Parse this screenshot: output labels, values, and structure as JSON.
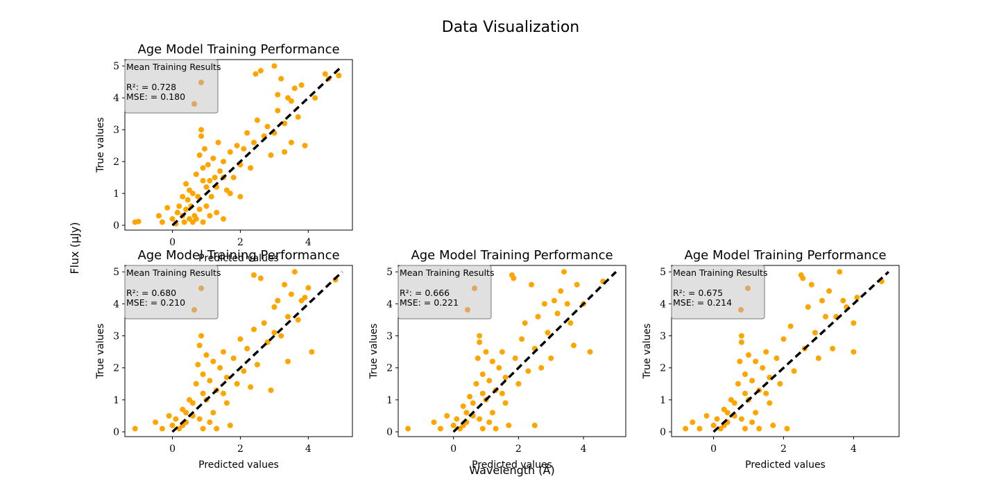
{
  "figure": {
    "suptitle": "Data Visualization",
    "supxlabel": "Wavelength (Å)",
    "supylabel": "Flux (μJy)"
  },
  "colors": {
    "points": "#ffa500",
    "legend_marker": "#dfa85e",
    "diagonal": "#000000",
    "legend_bg": "#e0e0e0"
  },
  "chart_data": [
    {
      "type": "scatter",
      "title": "Age Model Training Performance",
      "xlabel": "Predicted values",
      "ylabel": "True values",
      "xlim": [
        -1.4,
        5.3
      ],
      "ylim": [
        -0.15,
        5.2
      ],
      "xticks": [
        0,
        2,
        4
      ],
      "yticks": [
        0,
        1,
        2,
        3,
        4,
        5
      ],
      "legend": {
        "title": "Mean Training Results",
        "placement": "top-left",
        "entries": [
          "R²: = 0.728",
          "MSE: = 0.180"
        ]
      },
      "diagonal": [
        [
          0,
          0
        ],
        [
          5,
          5
        ]
      ],
      "points": [
        [
          -1.1,
          0.1
        ],
        [
          -1.0,
          0.12
        ],
        [
          -0.4,
          0.3
        ],
        [
          -0.3,
          0.1
        ],
        [
          -0.15,
          0.55
        ],
        [
          0.0,
          0.2
        ],
        [
          0.1,
          0.05
        ],
        [
          0.15,
          0.4
        ],
        [
          0.2,
          0.6
        ],
        [
          0.3,
          0.3
        ],
        [
          0.35,
          0.1
        ],
        [
          0.4,
          1.3
        ],
        [
          0.45,
          0.8
        ],
        [
          0.5,
          0.2
        ],
        [
          0.55,
          0.6
        ],
        [
          0.6,
          1.0
        ],
        [
          0.65,
          0.3
        ],
        [
          0.7,
          1.6
        ],
        [
          0.75,
          0.9
        ],
        [
          0.8,
          2.2
        ],
        [
          0.8,
          0.5
        ],
        [
          0.85,
          3.0
        ],
        [
          0.85,
          2.8
        ],
        [
          0.9,
          1.8
        ],
        [
          0.9,
          0.1
        ],
        [
          0.95,
          2.4
        ],
        [
          1.0,
          1.2
        ],
        [
          1.0,
          0.6
        ],
        [
          1.05,
          1.9
        ],
        [
          1.1,
          1.4
        ],
        [
          1.15,
          0.9
        ],
        [
          1.2,
          2.1
        ],
        [
          1.25,
          1.5
        ],
        [
          1.3,
          0.4
        ],
        [
          1.35,
          2.6
        ],
        [
          1.4,
          1.7
        ],
        [
          1.5,
          0.2
        ],
        [
          1.5,
          2.0
        ],
        [
          1.6,
          1.1
        ],
        [
          1.7,
          2.3
        ],
        [
          1.8,
          1.5
        ],
        [
          1.9,
          2.5
        ],
        [
          2.0,
          1.9
        ],
        [
          2.0,
          0.9
        ],
        [
          2.1,
          2.4
        ],
        [
          2.2,
          2.9
        ],
        [
          2.3,
          1.8
        ],
        [
          2.4,
          2.6
        ],
        [
          2.45,
          4.75
        ],
        [
          2.5,
          3.3
        ],
        [
          2.6,
          4.85
        ],
        [
          2.7,
          2.8
        ],
        [
          2.8,
          3.1
        ],
        [
          2.9,
          2.2
        ],
        [
          3.0,
          5.0
        ],
        [
          3.0,
          2.9
        ],
        [
          3.1,
          4.1
        ],
        [
          3.1,
          3.6
        ],
        [
          3.2,
          4.6
        ],
        [
          3.3,
          3.2
        ],
        [
          3.3,
          2.3
        ],
        [
          3.4,
          4.0
        ],
        [
          3.5,
          3.9
        ],
        [
          3.5,
          2.6
        ],
        [
          3.6,
          4.3
        ],
        [
          3.7,
          3.4
        ],
        [
          3.8,
          4.4
        ],
        [
          3.9,
          2.5
        ],
        [
          4.2,
          4.0
        ],
        [
          4.5,
          4.75
        ],
        [
          4.6,
          4.6
        ],
        [
          4.9,
          4.7
        ],
        [
          0.3,
          0.9
        ],
        [
          0.5,
          1.1
        ],
        [
          0.7,
          0.2
        ],
        [
          0.9,
          1.4
        ],
        [
          1.1,
          0.3
        ],
        [
          1.3,
          1.2
        ],
        [
          1.5,
          1.5
        ],
        [
          1.7,
          1.0
        ],
        [
          0.6,
          0.1
        ],
        [
          0.4,
          0.5
        ]
      ]
    },
    {
      "type": "scatter",
      "title": "Age Model Training Performance",
      "xlabel": "Predicted values",
      "ylabel": "True values",
      "xlim": [
        -1.4,
        5.3
      ],
      "ylim": [
        -0.15,
        5.2
      ],
      "xticks": [
        0,
        2,
        4
      ],
      "yticks": [
        0,
        1,
        2,
        3,
        4,
        5
      ],
      "legend": {
        "title": "Mean Training Results",
        "placement": "top-left",
        "entries": [
          "R²: = 0.680",
          "MSE: = 0.210"
        ]
      },
      "diagonal": [
        [
          0,
          0
        ],
        [
          5,
          5
        ]
      ],
      "points": [
        [
          -1.1,
          0.1
        ],
        [
          -0.5,
          0.3
        ],
        [
          -0.3,
          0.1
        ],
        [
          -0.1,
          0.5
        ],
        [
          0.0,
          0.2
        ],
        [
          0.1,
          0.4
        ],
        [
          0.2,
          0.1
        ],
        [
          0.3,
          0.7
        ],
        [
          0.4,
          0.3
        ],
        [
          0.5,
          1.0
        ],
        [
          0.6,
          0.5
        ],
        [
          0.7,
          1.5
        ],
        [
          0.75,
          2.1
        ],
        [
          0.8,
          2.7
        ],
        [
          0.85,
          3.0
        ],
        [
          0.9,
          1.8
        ],
        [
          0.9,
          0.1
        ],
        [
          1.0,
          2.4
        ],
        [
          1.0,
          1.0
        ],
        [
          1.1,
          1.6
        ],
        [
          1.2,
          0.6
        ],
        [
          1.2,
          2.2
        ],
        [
          1.3,
          1.3
        ],
        [
          1.4,
          2.0
        ],
        [
          1.5,
          2.5
        ],
        [
          1.6,
          1.7
        ],
        [
          1.7,
          0.2
        ],
        [
          1.8,
          2.3
        ],
        [
          1.9,
          1.5
        ],
        [
          2.0,
          2.9
        ],
        [
          2.1,
          1.9
        ],
        [
          2.2,
          2.6
        ],
        [
          2.3,
          1.4
        ],
        [
          2.4,
          4.9
        ],
        [
          2.4,
          3.2
        ],
        [
          2.5,
          2.1
        ],
        [
          2.6,
          4.8
        ],
        [
          2.7,
          3.4
        ],
        [
          2.8,
          2.8
        ],
        [
          2.9,
          1.3
        ],
        [
          3.0,
          3.9
        ],
        [
          3.0,
          3.1
        ],
        [
          3.1,
          4.1
        ],
        [
          3.2,
          3.0
        ],
        [
          3.3,
          4.6
        ],
        [
          3.4,
          2.2
        ],
        [
          3.4,
          3.6
        ],
        [
          3.5,
          4.3
        ],
        [
          3.6,
          5.0
        ],
        [
          3.7,
          3.5
        ],
        [
          3.8,
          4.1
        ],
        [
          3.9,
          4.2
        ],
        [
          4.0,
          4.5
        ],
        [
          4.1,
          2.5
        ],
        [
          4.8,
          4.75
        ],
        [
          0.3,
          0.2
        ],
        [
          0.6,
          0.9
        ],
        [
          0.8,
          0.4
        ],
        [
          1.1,
          0.3
        ],
        [
          1.3,
          0.1
        ],
        [
          1.5,
          1.2
        ],
        [
          0.4,
          0.6
        ],
        [
          0.9,
          1.2
        ],
        [
          1.6,
          0.9
        ]
      ]
    },
    {
      "type": "scatter",
      "title": "Age Model Training Performance",
      "xlabel": "Predicted values",
      "ylabel": "True values",
      "xlim": [
        -1.7,
        5.3
      ],
      "ylim": [
        -0.15,
        5.2
      ],
      "xticks": [
        0,
        2,
        4
      ],
      "yticks": [
        0,
        1,
        2,
        3,
        4,
        5
      ],
      "legend": {
        "title": "Mean Training Results",
        "placement": "top-left",
        "entries": [
          "R²: = 0.666",
          "MSE: = 0.221"
        ]
      },
      "diagonal": [
        [
          0,
          0
        ],
        [
          5,
          5
        ]
      ],
      "points": [
        [
          -1.4,
          0.1
        ],
        [
          -0.6,
          0.3
        ],
        [
          -0.4,
          0.1
        ],
        [
          -0.2,
          0.5
        ],
        [
          0.0,
          0.2
        ],
        [
          0.1,
          0.4
        ],
        [
          0.2,
          0.1
        ],
        [
          0.3,
          0.8
        ],
        [
          0.4,
          0.3
        ],
        [
          0.5,
          1.1
        ],
        [
          0.6,
          0.5
        ],
        [
          0.7,
          1.5
        ],
        [
          0.75,
          2.3
        ],
        [
          0.8,
          2.8
        ],
        [
          0.8,
          3.0
        ],
        [
          0.9,
          1.8
        ],
        [
          0.9,
          0.1
        ],
        [
          1.0,
          2.5
        ],
        [
          1.0,
          1.0
        ],
        [
          1.1,
          1.6
        ],
        [
          1.2,
          0.6
        ],
        [
          1.2,
          2.2
        ],
        [
          1.3,
          1.3
        ],
        [
          1.4,
          2.0
        ],
        [
          1.5,
          2.5
        ],
        [
          1.6,
          1.7
        ],
        [
          1.7,
          0.2
        ],
        [
          1.8,
          4.9
        ],
        [
          1.85,
          4.8
        ],
        [
          1.9,
          2.3
        ],
        [
          2.0,
          1.5
        ],
        [
          2.1,
          2.9
        ],
        [
          2.2,
          3.4
        ],
        [
          2.3,
          1.9
        ],
        [
          2.4,
          4.6
        ],
        [
          2.5,
          2.6
        ],
        [
          2.5,
          0.2
        ],
        [
          2.6,
          3.6
        ],
        [
          2.7,
          2.0
        ],
        [
          2.8,
          4.0
        ],
        [
          2.9,
          3.1
        ],
        [
          3.0,
          2.3
        ],
        [
          3.1,
          4.1
        ],
        [
          3.2,
          3.7
        ],
        [
          3.3,
          4.4
        ],
        [
          3.4,
          5.0
        ],
        [
          3.5,
          4.0
        ],
        [
          3.6,
          3.4
        ],
        [
          3.7,
          2.7
        ],
        [
          3.8,
          4.6
        ],
        [
          4.0,
          4.0
        ],
        [
          4.2,
          2.5
        ],
        [
          4.6,
          4.7
        ],
        [
          0.3,
          0.2
        ],
        [
          0.6,
          0.9
        ],
        [
          0.8,
          0.4
        ],
        [
          1.1,
          0.3
        ],
        [
          1.3,
          0.1
        ],
        [
          1.5,
          1.2
        ],
        [
          0.4,
          0.6
        ],
        [
          0.9,
          1.2
        ],
        [
          1.6,
          0.9
        ]
      ]
    },
    {
      "type": "scatter",
      "title": "Age Model Training Performance",
      "xlabel": "Predicted values",
      "ylabel": "True values",
      "xlim": [
        -1.2,
        5.3
      ],
      "ylim": [
        -0.15,
        5.2
      ],
      "xticks": [
        0,
        2,
        4
      ],
      "yticks": [
        0,
        1,
        2,
        3,
        4,
        5
      ],
      "legend": {
        "title": "Mean Training Results",
        "placement": "top-left",
        "entries": [
          "R²: = 0.675",
          "MSE: = 0.214"
        ]
      },
      "diagonal": [
        [
          0,
          0
        ],
        [
          5,
          5
        ]
      ],
      "points": [
        [
          -0.8,
          0.1
        ],
        [
          -0.6,
          0.3
        ],
        [
          -0.4,
          0.1
        ],
        [
          -0.2,
          0.5
        ],
        [
          0.0,
          0.2
        ],
        [
          0.1,
          0.4
        ],
        [
          0.2,
          0.1
        ],
        [
          0.3,
          0.7
        ],
        [
          0.4,
          0.3
        ],
        [
          0.5,
          1.0
        ],
        [
          0.6,
          0.5
        ],
        [
          0.7,
          1.5
        ],
        [
          0.75,
          2.2
        ],
        [
          0.8,
          2.8
        ],
        [
          0.8,
          3.0
        ],
        [
          0.9,
          1.8
        ],
        [
          0.9,
          0.1
        ],
        [
          1.0,
          2.4
        ],
        [
          1.0,
          1.0
        ],
        [
          1.1,
          1.6
        ],
        [
          1.2,
          0.6
        ],
        [
          1.2,
          2.2
        ],
        [
          1.3,
          1.3
        ],
        [
          1.4,
          2.0
        ],
        [
          1.5,
          2.5
        ],
        [
          1.6,
          1.7
        ],
        [
          1.7,
          0.2
        ],
        [
          1.8,
          2.3
        ],
        [
          1.9,
          1.5
        ],
        [
          2.0,
          2.9
        ],
        [
          2.1,
          0.1
        ],
        [
          2.2,
          3.3
        ],
        [
          2.3,
          1.9
        ],
        [
          2.5,
          4.9
        ],
        [
          2.55,
          4.8
        ],
        [
          2.6,
          2.6
        ],
        [
          2.7,
          3.9
        ],
        [
          2.8,
          4.6
        ],
        [
          2.9,
          3.1
        ],
        [
          3.0,
          2.3
        ],
        [
          3.1,
          4.1
        ],
        [
          3.2,
          3.6
        ],
        [
          3.3,
          4.4
        ],
        [
          3.4,
          2.6
        ],
        [
          3.5,
          3.6
        ],
        [
          3.6,
          5.0
        ],
        [
          3.7,
          4.1
        ],
        [
          3.8,
          3.9
        ],
        [
          4.0,
          3.4
        ],
        [
          4.0,
          2.5
        ],
        [
          4.1,
          4.2
        ],
        [
          4.8,
          4.7
        ],
        [
          0.3,
          0.2
        ],
        [
          0.6,
          0.9
        ],
        [
          0.8,
          0.4
        ],
        [
          1.1,
          0.3
        ],
        [
          1.3,
          0.1
        ],
        [
          1.5,
          1.2
        ],
        [
          0.4,
          0.6
        ],
        [
          0.9,
          1.2
        ],
        [
          1.6,
          0.9
        ]
      ]
    }
  ]
}
